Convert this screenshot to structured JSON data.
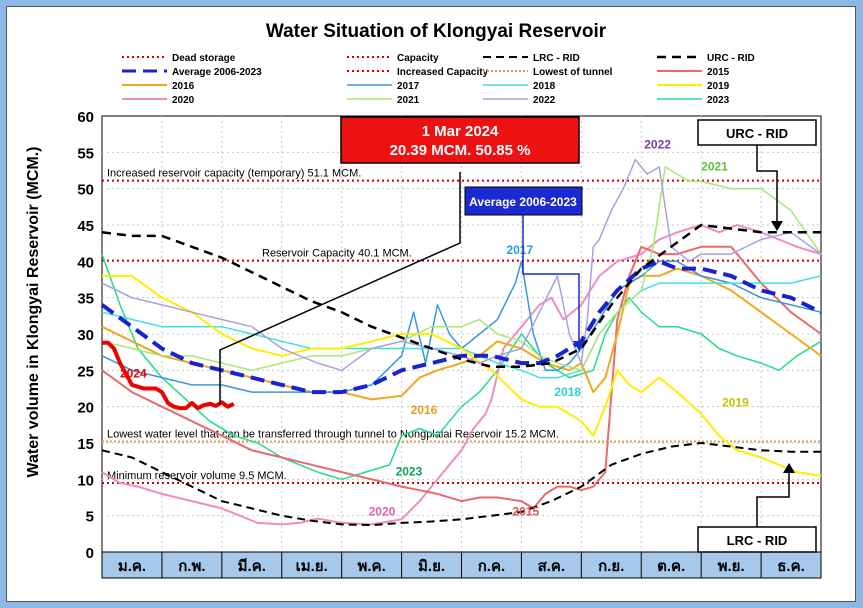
{
  "chart_data": {
    "type": "line",
    "title": "Water Situation of Klongyai Reservoir",
    "ylabel": "Water volume in Klongyai Reservoir (MCM.)",
    "xlabel": "",
    "ylim": [
      0,
      60
    ],
    "yticks": [
      0,
      5,
      10,
      15,
      20,
      25,
      30,
      35,
      40,
      45,
      50,
      55,
      60
    ],
    "months": [
      "ม.ค.",
      "ก.พ.",
      "มี.ค.",
      "เม.ย.",
      "พ.ค.",
      "มิ.ย.",
      "ก.ค.",
      "ส.ค.",
      "ก.ย.",
      "ต.ค.",
      "พ.ย.",
      "ธ.ค."
    ],
    "grid": true,
    "legend_position": "top",
    "reference_lines": [
      {
        "key": "dead",
        "name": "Dead storage",
        "value": 9.5,
        "color": "#d00000",
        "dash": "2,3",
        "label": "Minimum reservoir volume 9.5 MCM."
      },
      {
        "key": "capacity",
        "name": "Capacity",
        "value": 40.1,
        "color": "#d00000",
        "dash": "2,3",
        "label": "Reservoir Capacity 40.1 MCM."
      },
      {
        "key": "increased",
        "name": "Increased Capacity",
        "value": 51.1,
        "color": "#d00000",
        "dash": "2,3",
        "label": "Increased reservoir capacity (temporary) 51.1 MCM."
      },
      {
        "key": "tunnel",
        "name": "Lowest of tunnel",
        "value": 15.2,
        "color": "#e0a050",
        "dash": "2,2",
        "label": "Lowest water level that can be transferred through tunnel to Nongplalai Reservoir 15.2 MCM."
      }
    ],
    "series": [
      {
        "name": "2023",
        "color": "#22dd88",
        "width": 1.5,
        "dash": "",
        "x": [
          0,
          0.3,
          0.6,
          1,
          1.4,
          1.8,
          2.2,
          2.6,
          3,
          3.3,
          3.6,
          4,
          4.4,
          4.8,
          5,
          5.3,
          5.6,
          6,
          6.3,
          6.6,
          7,
          7.2,
          7.4,
          7.6,
          7.8,
          8,
          8.2,
          8.4,
          8.6,
          8.8,
          9,
          9.3,
          9.6,
          10,
          10.3,
          10.6,
          11,
          11.3,
          11.6,
          12
        ],
        "y": [
          41,
          34,
          28,
          24,
          21,
          18,
          16,
          15,
          13,
          12,
          11,
          10,
          11,
          12,
          16,
          17,
          16,
          20,
          22,
          25,
          30,
          28,
          26,
          25,
          24,
          24.5,
          25,
          30,
          33,
          35,
          33,
          31,
          31,
          30,
          28,
          27,
          26,
          25,
          27,
          29
        ]
      },
      {
        "name": "2020",
        "color": "#f08cc0",
        "width": 2,
        "dash": "",
        "x": [
          0,
          0.3,
          0.6,
          1,
          1.5,
          2,
          2.3,
          2.6,
          3,
          3.3,
          3.6,
          4,
          4.5,
          5,
          5.3,
          5.6,
          6,
          6.2,
          6.4,
          6.5,
          6.7,
          7,
          7.3,
          7.5,
          7.7,
          8,
          8.3,
          8.6,
          9,
          9.3,
          9.6,
          10,
          10.3,
          10.6,
          11,
          11.3,
          11.6,
          12
        ],
        "y": [
          11,
          9.5,
          9,
          8,
          7,
          6,
          5,
          4,
          3.8,
          4,
          4.6,
          4,
          3.8,
          4.5,
          7,
          10,
          14,
          17,
          19,
          21,
          28,
          31,
          34,
          35,
          32,
          34,
          38,
          40,
          41,
          43,
          44,
          45,
          44,
          45,
          44,
          43,
          42,
          41
        ]
      },
      {
        "name": "2015",
        "color": "#e86a6a",
        "width": 2,
        "dash": "",
        "x": [
          0,
          0.5,
          1,
          1.5,
          2,
          2.5,
          3,
          3.5,
          4,
          4.5,
          5,
          5.3,
          5.6,
          6,
          6.3,
          6.6,
          7,
          7.2,
          7.4,
          7.6,
          7.8,
          8,
          8.2,
          8.4,
          8.6,
          8.8,
          9,
          9.3,
          9.6,
          10,
          10.5,
          11,
          11.5,
          12
        ],
        "y": [
          25,
          22,
          20,
          18,
          16,
          14,
          13,
          12,
          11,
          10,
          9,
          8.5,
          8,
          7,
          7.5,
          7.5,
          7,
          6,
          8,
          9,
          9,
          8.5,
          9,
          11,
          32,
          38,
          42,
          41,
          41,
          42,
          42,
          37,
          33,
          30
        ]
      },
      {
        "name": "2016",
        "color": "#f0a820",
        "width": 2,
        "dash": "",
        "x": [
          0,
          0.5,
          1,
          1.5,
          2,
          2.5,
          3,
          3.5,
          4,
          4.5,
          5,
          5.3,
          5.6,
          6,
          6.3,
          6.6,
          7,
          7.4,
          7.8,
          8,
          8.2,
          8.4,
          8.6,
          8.8,
          9,
          9.3,
          9.6,
          10,
          10.5,
          11,
          11.5,
          12
        ],
        "y": [
          31,
          29,
          27,
          26,
          25,
          24,
          23,
          22,
          22,
          21,
          21.5,
          24,
          25,
          26,
          27,
          29,
          28,
          26,
          25,
          26,
          22,
          24,
          30,
          37,
          38,
          38,
          39,
          38,
          36,
          33,
          30,
          27
        ]
      },
      {
        "name": "2017",
        "color": "#3a98d8",
        "width": 1.5,
        "dash": "",
        "x": [
          0,
          0.5,
          1,
          1.5,
          2,
          2.5,
          3,
          3.5,
          4,
          4.5,
          5,
          5.2,
          5.4,
          5.6,
          5.8,
          6,
          6.3,
          6.6,
          6.9,
          7,
          7.2,
          7.4,
          7.6,
          7.8,
          8,
          8.3,
          8.6,
          9,
          9.3,
          9.6,
          10,
          10.5,
          11,
          11.5,
          12
        ],
        "y": [
          27,
          25,
          24,
          23,
          23,
          22,
          22,
          22,
          22,
          23,
          27,
          33,
          26,
          34,
          30,
          28,
          30,
          32,
          37,
          40,
          30,
          25,
          25,
          26,
          28,
          32,
          36,
          38,
          40,
          40,
          38,
          37,
          35,
          34,
          33
        ]
      },
      {
        "name": "2018",
        "color": "#40e0e0",
        "width": 1.5,
        "dash": "",
        "x": [
          0,
          0.5,
          1,
          1.5,
          2,
          2.5,
          3,
          3.5,
          4,
          4.5,
          5,
          5.5,
          6,
          6.3,
          6.6,
          7,
          7.3,
          7.6,
          8,
          8.3,
          8.6,
          9,
          9.3,
          9.6,
          10,
          10.5,
          11,
          11.5,
          12
        ],
        "y": [
          33,
          32,
          31,
          31,
          31,
          30,
          29,
          28,
          28,
          28,
          28,
          28,
          28,
          27,
          26,
          25,
          24,
          24,
          25,
          30,
          33,
          36,
          37,
          37,
          37,
          37,
          37,
          37,
          38
        ]
      },
      {
        "name": "2019",
        "color": "#ffee00",
        "width": 2,
        "dash": "",
        "x": [
          0,
          0.5,
          1,
          1.5,
          2,
          2.5,
          3,
          3.5,
          4,
          4.5,
          5,
          5.5,
          6,
          6.5,
          7,
          7.3,
          7.6,
          8,
          8.2,
          8.4,
          8.6,
          8.8,
          9,
          9.3,
          9.6,
          10,
          10.3,
          10.6,
          11,
          11.3,
          11.6,
          12
        ],
        "y": [
          38,
          38,
          35,
          33,
          30,
          28,
          27,
          28,
          28,
          29,
          30,
          30,
          28,
          25,
          21,
          20,
          20,
          18,
          16,
          20,
          25,
          23,
          22,
          24,
          22,
          19,
          16,
          14,
          13,
          12,
          11,
          10.5
        ]
      },
      {
        "name": "2021",
        "color": "#a8e870",
        "width": 1.5,
        "dash": "",
        "x": [
          0,
          0.5,
          1,
          1.5,
          2,
          2.5,
          3,
          3.5,
          4,
          4.5,
          5,
          5.5,
          6,
          6.3,
          6.6,
          7,
          7.3,
          7.6,
          8,
          8.3,
          8.6,
          9,
          9.2,
          9.4,
          9.6,
          9.8,
          10,
          10.5,
          11,
          11.5,
          12
        ],
        "y": [
          29,
          28,
          27,
          27,
          26,
          25,
          26,
          27,
          27,
          28,
          29,
          31,
          31,
          32,
          30,
          29,
          27,
          26,
          25,
          30,
          33,
          36,
          42,
          53,
          52,
          51,
          51,
          50,
          50,
          47,
          41
        ]
      },
      {
        "name": "2022",
        "color": "#a8a0e0",
        "width": 1.5,
        "dash": "",
        "x": [
          0,
          0.5,
          1,
          1.5,
          2,
          2.5,
          3,
          3.3,
          3.6,
          4,
          4.5,
          5,
          5.5,
          6,
          6.3,
          6.6,
          7,
          7.3,
          7.6,
          7.8,
          8,
          8.1,
          8.2,
          8.3,
          8.5,
          8.7,
          8.9,
          9.1,
          9.3,
          9.5,
          9.8,
          10,
          10.5,
          11,
          11.5,
          12
        ],
        "y": [
          37,
          35,
          34,
          33,
          32,
          31,
          28,
          27,
          26,
          25,
          28,
          29,
          28,
          27,
          26,
          27,
          28,
          33,
          38,
          30,
          26,
          32,
          42,
          43,
          47,
          50,
          54,
          52,
          53,
          42,
          40,
          41,
          41,
          43,
          44,
          41
        ]
      },
      {
        "name": "Average 2006-2023",
        "color": "#1822d0",
        "width": 4,
        "dash": "14,7",
        "x": [
          0,
          0.5,
          1,
          1.5,
          2,
          2.5,
          3,
          3.5,
          4,
          4.5,
          5,
          5.5,
          6,
          6.5,
          7,
          7.3,
          7.6,
          8,
          8.3,
          8.6,
          9,
          9.3,
          9.6,
          10,
          10.5,
          11,
          11.5,
          12
        ],
        "y": [
          34,
          31,
          28,
          26,
          25,
          24,
          23,
          22,
          22,
          23,
          25,
          26,
          27,
          27,
          26,
          26,
          27,
          29,
          33,
          36,
          39,
          40,
          39,
          39,
          38,
          36,
          35,
          33
        ]
      },
      {
        "name": "LRC - RID",
        "color": "#000000",
        "width": 2,
        "dash": "8,5",
        "x": [
          0,
          0.5,
          1,
          1.5,
          2,
          2.5,
          3,
          3.5,
          4,
          4.5,
          5,
          5.5,
          6,
          6.5,
          7,
          7.5,
          8,
          8.5,
          9,
          9.5,
          10,
          10.5,
          11,
          11.5,
          12
        ],
        "y": [
          14,
          13,
          11,
          9,
          7,
          6,
          5,
          4.3,
          3.8,
          3.7,
          4,
          4.2,
          4.5,
          5,
          5.5,
          7,
          9,
          12,
          13.5,
          14.5,
          15,
          14.5,
          14,
          13.8,
          13.8
        ]
      },
      {
        "name": "URC - RID",
        "color": "#000000",
        "width": 2.5,
        "dash": "9,6",
        "x": [
          0,
          0.5,
          1,
          1.5,
          2,
          2.5,
          3,
          3.5,
          4,
          4.5,
          5,
          5.5,
          6,
          6.5,
          7,
          7.5,
          8,
          8.5,
          9,
          9.5,
          10,
          10.5,
          11,
          11.5,
          12
        ],
        "y": [
          44,
          43.5,
          43.5,
          42,
          40.5,
          38.5,
          36.5,
          34.5,
          33,
          31,
          29.5,
          28,
          26.5,
          25.5,
          25.5,
          26,
          28,
          34,
          39,
          42,
          45,
          44.5,
          44,
          44,
          44
        ]
      },
      {
        "name": "2024",
        "color": "#ee0000",
        "width": 4,
        "dash": "",
        "x": [
          0,
          0.1,
          0.2,
          0.3,
          0.4,
          0.5,
          0.7,
          0.9,
          1,
          1.1,
          1.2,
          1.3,
          1.4,
          1.5,
          1.6,
          1.7,
          1.8,
          1.9,
          2,
          2.1,
          2.2
        ],
        "y": [
          28.8,
          28.8,
          28,
          26,
          24.5,
          23,
          22.5,
          22.5,
          22,
          20.5,
          20,
          19.8,
          19.8,
          20.5,
          19.8,
          20.2,
          20.4,
          20.1,
          20.6,
          20,
          20.4
        ]
      }
    ],
    "legend_order": [
      "Dead storage",
      "Capacity",
      "LRC - RID",
      "URC - RID",
      "Average 2006-2023",
      "Increased Capacity",
      "Lowest of tunnel",
      "2015",
      "2016",
      "2017",
      "2018",
      "2019",
      "2020",
      "2021",
      "2022",
      "2023"
    ],
    "series_labels": [
      {
        "text": "2024",
        "color": "#ee0000",
        "x": 0.3,
        "y": 24
      },
      {
        "text": "2016",
        "color": "#e0a020",
        "x": 5.15,
        "y": 19
      },
      {
        "text": "2017",
        "color": "#20a0d0",
        "x": 6.75,
        "y": 41
      },
      {
        "text": "2018",
        "color": "#30d0d0",
        "x": 7.55,
        "y": 21.5
      },
      {
        "text": "2019",
        "color": "#c8c000",
        "x": 10.35,
        "y": 20
      },
      {
        "text": "2020",
        "color": "#e060b0",
        "x": 4.45,
        "y": 5
      },
      {
        "text": "2015",
        "color": "#e05050",
        "x": 6.85,
        "y": 5
      },
      {
        "text": "2021",
        "color": "#60c040",
        "x": 10.0,
        "y": 52.5
      },
      {
        "text": "2022",
        "color": "#7040b0",
        "x": 9.05,
        "y": 55.5
      },
      {
        "text": "2023",
        "color": "#10a060",
        "x": 4.9,
        "y": 10.5
      }
    ],
    "annotations": {
      "current_line1": "1 Mar 2024",
      "current_line2": "20.39 MCM. 50.85 %",
      "average_label": "Average 2006-2023",
      "urc_label": "URC - RID",
      "lrc_label": "LRC - RID"
    }
  }
}
